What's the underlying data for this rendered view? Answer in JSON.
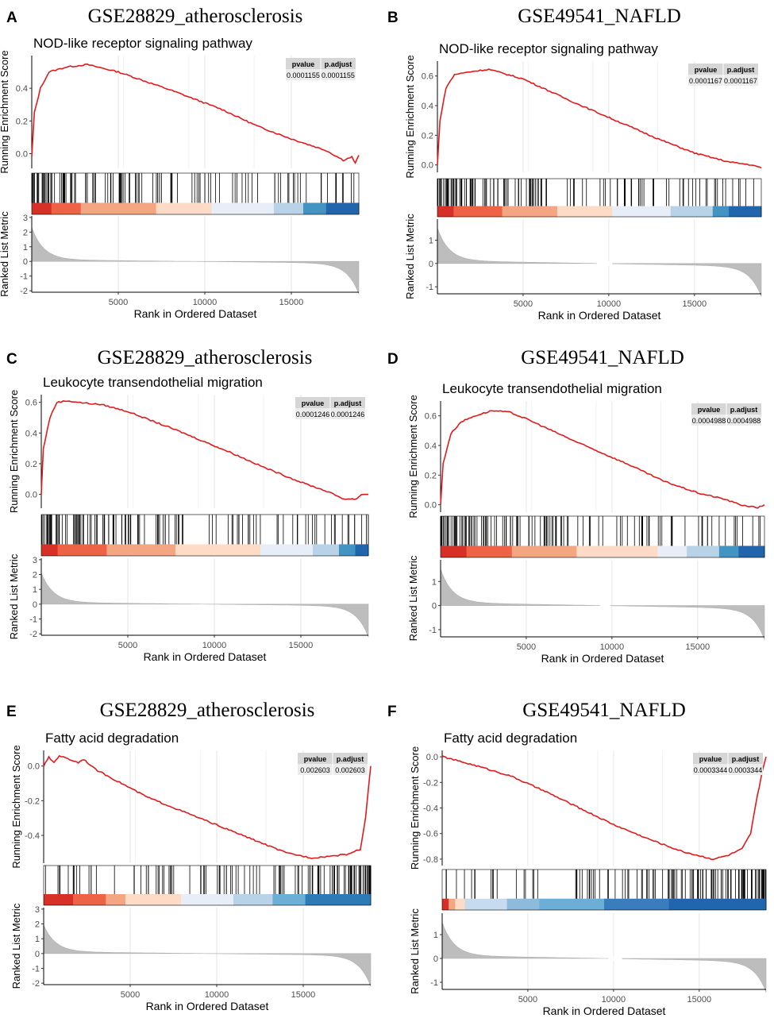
{
  "figure": {
    "xlabel": "Rank in Ordered Dataset",
    "ylabel_top": "Running Enrichment Score",
    "ylabel_bottom": "Ranked List Metric",
    "table_headers": [
      "pvalue",
      "p.adjust"
    ]
  },
  "chart_data": [
    {
      "type": "line",
      "panel_label": "A",
      "dataset": "GSE28829_atherosclerosis",
      "pathway": "NOD-like receptor signaling pathway",
      "pvalue": "0.0001155",
      "p_adjust": "0.0001155",
      "x_ticks": [
        5000,
        10000,
        15000
      ],
      "xlim": [
        0,
        18900
      ],
      "es_ylim": [
        -0.09,
        0.6
      ],
      "es_ticks": [
        0.0,
        0.2,
        0.4
      ],
      "es_tick_labels": [
        "0.0",
        "0.2",
        "0.4"
      ],
      "es_curve": [
        [
          0,
          -0.02
        ],
        [
          150,
          0.25
        ],
        [
          500,
          0.4
        ],
        [
          1000,
          0.5
        ],
        [
          2000,
          0.53
        ],
        [
          3200,
          0.545
        ],
        [
          5000,
          0.5
        ],
        [
          8000,
          0.39
        ],
        [
          11000,
          0.27
        ],
        [
          13000,
          0.17
        ],
        [
          15000,
          0.09
        ],
        [
          17000,
          0.02
        ],
        [
          18000,
          -0.04
        ],
        [
          18500,
          -0.02
        ],
        [
          18700,
          -0.06
        ],
        [
          18900,
          -0.01
        ]
      ],
      "metric_ylim": [
        -2.1,
        3.1
      ],
      "metric_ticks": [
        -2,
        -1,
        0,
        1,
        2,
        3
      ],
      "metric_tick_labels": [
        "-2",
        "-1",
        "0",
        "1",
        "2",
        "3"
      ],
      "metric_max": 2.2,
      "metric_min": -2.1,
      "metric_gap": null,
      "gene_band_colors": [
        "#d73027",
        "#ee6346",
        "#f4a582",
        "#fddbc7",
        "#e8eef8",
        "#b8d3e7",
        "#4393c3",
        "#2166ac"
      ],
      "gene_band_breaks": [
        0,
        0.06,
        0.15,
        0.38,
        0.55,
        0.74,
        0.83,
        0.9,
        0.97,
        1
      ]
    },
    {
      "type": "line",
      "panel_label": "B",
      "dataset": "GSE49541_NAFLD",
      "pathway": "NOD-like receptor signaling pathway",
      "pvalue": "0.0001167",
      "p_adjust": "0.0001167",
      "x_ticks": [
        5000,
        10000,
        15000
      ],
      "xlim": [
        0,
        18900
      ],
      "es_ylim": [
        -0.05,
        0.7
      ],
      "es_ticks": [
        0.0,
        0.2,
        0.4,
        0.6
      ],
      "es_tick_labels": [
        "0.0",
        "0.2",
        "0.4",
        "0.6"
      ],
      "es_curve": [
        [
          0,
          0.0
        ],
        [
          150,
          0.3
        ],
        [
          500,
          0.52
        ],
        [
          1000,
          0.61
        ],
        [
          2000,
          0.63
        ],
        [
          3000,
          0.645
        ],
        [
          5000,
          0.58
        ],
        [
          8000,
          0.42
        ],
        [
          11000,
          0.27
        ],
        [
          13000,
          0.17
        ],
        [
          15000,
          0.08
        ],
        [
          17000,
          0.02
        ],
        [
          18300,
          0.0
        ],
        [
          18900,
          -0.02
        ]
      ],
      "metric_ylim": [
        -1.3,
        1.9
      ],
      "metric_ticks": [
        -1,
        0,
        1
      ],
      "metric_tick_labels": [
        "-1",
        "0",
        "1"
      ],
      "metric_max": 1.4,
      "metric_min": -1.3,
      "metric_gap": [
        9300,
        10200
      ],
      "gene_band_colors": [
        "#d73027",
        "#ee6346",
        "#f4a582",
        "#fddbc7",
        "#e8eef8",
        "#b8d3e7",
        "#4393c3",
        "#2166ac"
      ],
      "gene_band_breaks": [
        0,
        0.05,
        0.2,
        0.37,
        0.54,
        0.72,
        0.85,
        0.9,
        0.96,
        1
      ]
    },
    {
      "type": "line",
      "panel_label": "C",
      "dataset": "GSE28829_atherosclerosis",
      "pathway": "Leukocyte transendothelial migration",
      "pvalue": "0.0001246",
      "p_adjust": "0.0001246",
      "x_ticks": [
        5000,
        10000,
        15000
      ],
      "xlim": [
        0,
        18900
      ],
      "es_ylim": [
        -0.09,
        0.65
      ],
      "es_ticks": [
        0.0,
        0.2,
        0.4,
        0.6
      ],
      "es_tick_labels": [
        "0.0",
        "0.2",
        "0.4",
        "0.6"
      ],
      "es_curve": [
        [
          0,
          0.0
        ],
        [
          120,
          0.3
        ],
        [
          500,
          0.5
        ],
        [
          900,
          0.6
        ],
        [
          1500,
          0.61
        ],
        [
          2500,
          0.595
        ],
        [
          3500,
          0.585
        ],
        [
          5000,
          0.54
        ],
        [
          8000,
          0.41
        ],
        [
          11000,
          0.27
        ],
        [
          13000,
          0.17
        ],
        [
          15000,
          0.08
        ],
        [
          16500,
          0.02
        ],
        [
          17500,
          -0.03
        ],
        [
          18200,
          -0.03
        ],
        [
          18500,
          0.0
        ],
        [
          18900,
          0.0
        ]
      ],
      "metric_ylim": [
        -2.1,
        3.1
      ],
      "metric_ticks": [
        -2,
        -1,
        0,
        1,
        2,
        3
      ],
      "metric_tick_labels": [
        "-2",
        "-1",
        "0",
        "1",
        "2",
        "3"
      ],
      "metric_max": 2.0,
      "metric_min": -2.1,
      "metric_gap": null,
      "gene_band_colors": [
        "#d73027",
        "#ee6346",
        "#f4a582",
        "#fddbc7",
        "#e8eef8",
        "#b8d3e7",
        "#4393c3",
        "#2166ac"
      ],
      "gene_band_breaks": [
        0,
        0.05,
        0.2,
        0.41,
        0.67,
        0.83,
        0.91,
        0.96,
        0.98,
        1
      ]
    },
    {
      "type": "line",
      "panel_label": "D",
      "dataset": "GSE49541_NAFLD",
      "pathway": "Leukocyte transendothelial migration",
      "pvalue": "0.0004988",
      "p_adjust": "0.0004988",
      "x_ticks": [
        5000,
        10000,
        15000
      ],
      "xlim": [
        0,
        18900
      ],
      "es_ylim": [
        -0.05,
        0.7
      ],
      "es_ticks": [
        0.0,
        0.2,
        0.4,
        0.6
      ],
      "es_tick_labels": [
        "0.0",
        "0.2",
        "0.4",
        "0.6"
      ],
      "es_curve": [
        [
          0,
          0.0
        ],
        [
          150,
          0.28
        ],
        [
          600,
          0.48
        ],
        [
          1200,
          0.56
        ],
        [
          2000,
          0.6
        ],
        [
          3000,
          0.635
        ],
        [
          4000,
          0.625
        ],
        [
          5000,
          0.58
        ],
        [
          8000,
          0.42
        ],
        [
          11000,
          0.27
        ],
        [
          13000,
          0.16
        ],
        [
          15000,
          0.08
        ],
        [
          16500,
          0.04
        ],
        [
          17500,
          0.0
        ],
        [
          18500,
          -0.02
        ],
        [
          18900,
          0.0
        ]
      ],
      "metric_ylim": [
        -1.3,
        1.9
      ],
      "metric_ticks": [
        -1,
        0,
        1
      ],
      "metric_tick_labels": [
        "-1",
        "0",
        "1"
      ],
      "metric_max": 1.4,
      "metric_min": -1.3,
      "metric_gap": [
        9300,
        9900
      ],
      "gene_band_colors": [
        "#d73027",
        "#ee6346",
        "#f4a582",
        "#fddbc7",
        "#e8eef8",
        "#b8d3e7",
        "#4393c3",
        "#2166ac"
      ],
      "gene_band_breaks": [
        0,
        0.08,
        0.22,
        0.42,
        0.67,
        0.76,
        0.86,
        0.92,
        0.96,
        1
      ]
    },
    {
      "type": "line",
      "panel_label": "E",
      "dataset": "GSE28829_atherosclerosis",
      "pathway": "Fatty acid degradation",
      "pvalue": "0.002603",
      "p_adjust": "0.002603",
      "x_ticks": [
        5000,
        10000,
        15000
      ],
      "xlim": [
        0,
        18900
      ],
      "es_ylim": [
        -0.56,
        0.09
      ],
      "es_ticks": [
        -0.4,
        -0.2,
        0.0
      ],
      "es_tick_labels": [
        "-0.4",
        "-0.2",
        "0.0"
      ],
      "es_curve": [
        [
          0,
          0.0
        ],
        [
          300,
          0.05
        ],
        [
          600,
          0.02
        ],
        [
          900,
          0.06
        ],
        [
          2000,
          0.02
        ],
        [
          2300,
          0.04
        ],
        [
          3000,
          -0.02
        ],
        [
          4500,
          -0.1
        ],
        [
          6000,
          -0.18
        ],
        [
          8000,
          -0.26
        ],
        [
          10000,
          -0.34
        ],
        [
          12000,
          -0.42
        ],
        [
          14000,
          -0.5
        ],
        [
          15500,
          -0.53
        ],
        [
          16500,
          -0.52
        ],
        [
          17500,
          -0.51
        ],
        [
          18300,
          -0.48
        ],
        [
          18600,
          -0.3
        ],
        [
          18900,
          0.0
        ]
      ],
      "metric_ylim": [
        -2.1,
        3.1
      ],
      "metric_ticks": [
        -2,
        -1,
        0,
        1,
        2,
        3
      ],
      "metric_tick_labels": [
        "-2",
        "-1",
        "0",
        "1",
        "2",
        "3"
      ],
      "metric_max": 1.8,
      "metric_min": -2.1,
      "metric_gap": null,
      "gene_band_colors": [
        "#d73027",
        "#ee6346",
        "#f4a582",
        "#fddbc7",
        "#e8eef8",
        "#b8d3e7",
        "#6baed6",
        "#2c7bb6"
      ],
      "gene_band_breaks": [
        0,
        0.09,
        0.19,
        0.25,
        0.42,
        0.58,
        0.7,
        0.8,
        0.9,
        1
      ]
    },
    {
      "type": "line",
      "panel_label": "F",
      "dataset": "GSE49541_NAFLD",
      "pathway": "Fatty acid degradation",
      "pvalue": "0.0003344",
      "p_adjust": "0.0003344",
      "x_ticks": [
        5000,
        10000,
        15000
      ],
      "xlim": [
        0,
        18900
      ],
      "es_ylim": [
        -0.85,
        0.05
      ],
      "es_ticks": [
        -0.8,
        -0.6,
        -0.4,
        -0.2,
        0.0
      ],
      "es_tick_labels": [
        "-0.8",
        "-0.6",
        "-0.4",
        "-0.2",
        "0.0"
      ],
      "es_curve": [
        [
          0,
          0.0
        ],
        [
          100,
          0.0
        ],
        [
          300,
          -0.01
        ],
        [
          2000,
          -0.07
        ],
        [
          4000,
          -0.15
        ],
        [
          6000,
          -0.27
        ],
        [
          8000,
          -0.4
        ],
        [
          10000,
          -0.53
        ],
        [
          12000,
          -0.64
        ],
        [
          14000,
          -0.74
        ],
        [
          15800,
          -0.8
        ],
        [
          16700,
          -0.77
        ],
        [
          17500,
          -0.72
        ],
        [
          18000,
          -0.6
        ],
        [
          18400,
          -0.3
        ],
        [
          18700,
          -0.1
        ],
        [
          18900,
          0.0
        ]
      ],
      "metric_ylim": [
        -1.3,
        1.9
      ],
      "metric_ticks": [
        -1,
        0,
        1
      ],
      "metric_tick_labels": [
        "-1",
        "0",
        "1"
      ],
      "metric_max": 1.4,
      "metric_min": -1.3,
      "metric_gap": [
        9700,
        10500
      ],
      "gene_band_colors": [
        "#d73027",
        "#f4a582",
        "#fddbc7",
        "#c6dbef",
        "#8ebbdb",
        "#6baed6",
        "#3a7dbf",
        "#2166ac"
      ],
      "gene_band_breaks": [
        0,
        0.02,
        0.04,
        0.07,
        0.2,
        0.3,
        0.5,
        0.7,
        0.85,
        1
      ]
    }
  ]
}
